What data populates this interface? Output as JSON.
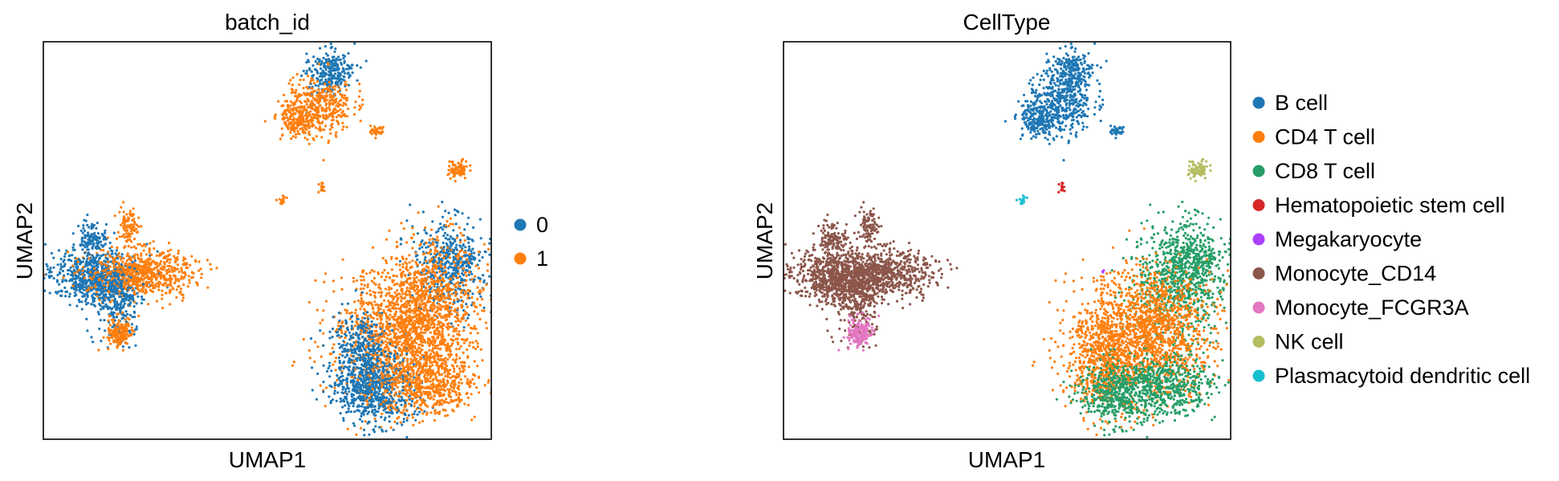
{
  "chart_data": [
    {
      "type": "scatter",
      "title": "batch_id",
      "xlabel": "UMAP1",
      "ylabel": "UMAP2",
      "grid": false,
      "ticks": false,
      "legend_position": "right",
      "series": [
        {
          "name": "0",
          "color": "#1f77b4"
        },
        {
          "name": "1",
          "color": "#ff7f0e"
        }
      ]
    },
    {
      "type": "scatter",
      "title": "CellType",
      "xlabel": "UMAP1",
      "ylabel": "UMAP2",
      "grid": false,
      "ticks": false,
      "legend_position": "right",
      "series": [
        {
          "name": "B cell",
          "color": "#1f77b4"
        },
        {
          "name": "CD4 T cell",
          "color": "#ff7f0e"
        },
        {
          "name": "CD8 T cell",
          "color": "#279e68"
        },
        {
          "name": "Hematopoietic stem cell",
          "color": "#d62728"
        },
        {
          "name": "Megakaryocyte",
          "color": "#aa40fc"
        },
        {
          "name": "Monocyte_CD14",
          "color": "#8c564b"
        },
        {
          "name": "Monocyte_FCGR3A",
          "color": "#e377c2"
        },
        {
          "name": "NK cell",
          "color": "#b5bd61"
        },
        {
          "name": "Plasmacytoid dendritic cell",
          "color": "#17becf"
        }
      ]
    }
  ]
}
